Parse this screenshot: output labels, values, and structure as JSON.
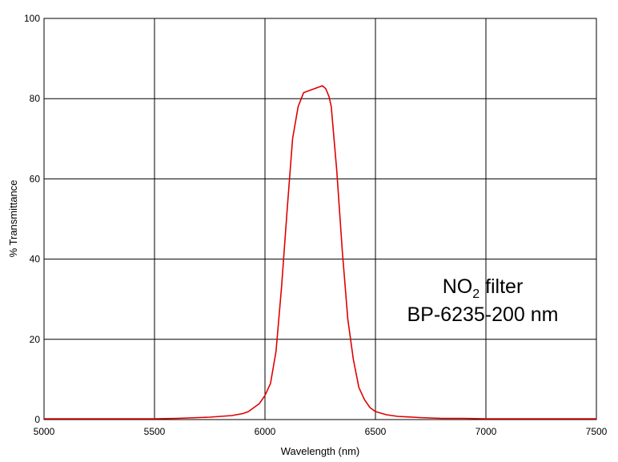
{
  "chart_data": {
    "type": "line",
    "title": "",
    "xlabel": "Wavelength (nm)",
    "ylabel": "% Transmittance",
    "xlim": [
      5000,
      7500
    ],
    "ylim": [
      0,
      100
    ],
    "xticks": [
      "5000",
      "5500",
      "6000",
      "6500",
      "7000",
      "7500"
    ],
    "yticks": [
      "0",
      "20",
      "40",
      "60",
      "80",
      "100"
    ],
    "grid": true,
    "legend": "none",
    "line_color": "#e00000",
    "annotation": {
      "line1_main": "NO",
      "line1_sub": "2",
      "line1_rest": " filter",
      "line2": "BP-6235-200 nm"
    },
    "series": [
      {
        "x": [
          5000,
          5100,
          5200,
          5300,
          5400,
          5500,
          5600,
          5700,
          5750,
          5800,
          5850,
          5900,
          5925,
          5950,
          5975,
          6000,
          6025,
          6050,
          6075,
          6100,
          6125,
          6150,
          6175,
          6200,
          6225,
          6250,
          6260,
          6275,
          6290,
          6300,
          6325,
          6350,
          6375,
          6400,
          6425,
          6450,
          6475,
          6500,
          6550,
          6600,
          6700,
          6800,
          6900,
          7000,
          7100,
          7200,
          7300,
          7400,
          7500
        ],
        "y": [
          0.2,
          0.2,
          0.2,
          0.2,
          0.2,
          0.2,
          0.3,
          0.5,
          0.6,
          0.8,
          1.0,
          1.5,
          2.0,
          3.0,
          4.0,
          6.0,
          9.0,
          17.0,
          33.0,
          52.0,
          70.0,
          78.0,
          81.5,
          82.0,
          82.5,
          83.0,
          83.2,
          82.5,
          80.5,
          78.0,
          62.0,
          42.0,
          25.0,
          15.0,
          8.0,
          5.0,
          3.0,
          2.0,
          1.2,
          0.8,
          0.5,
          0.3,
          0.3,
          0.2,
          0.2,
          0.2,
          0.2,
          0.2,
          0.2
        ]
      }
    ]
  }
}
